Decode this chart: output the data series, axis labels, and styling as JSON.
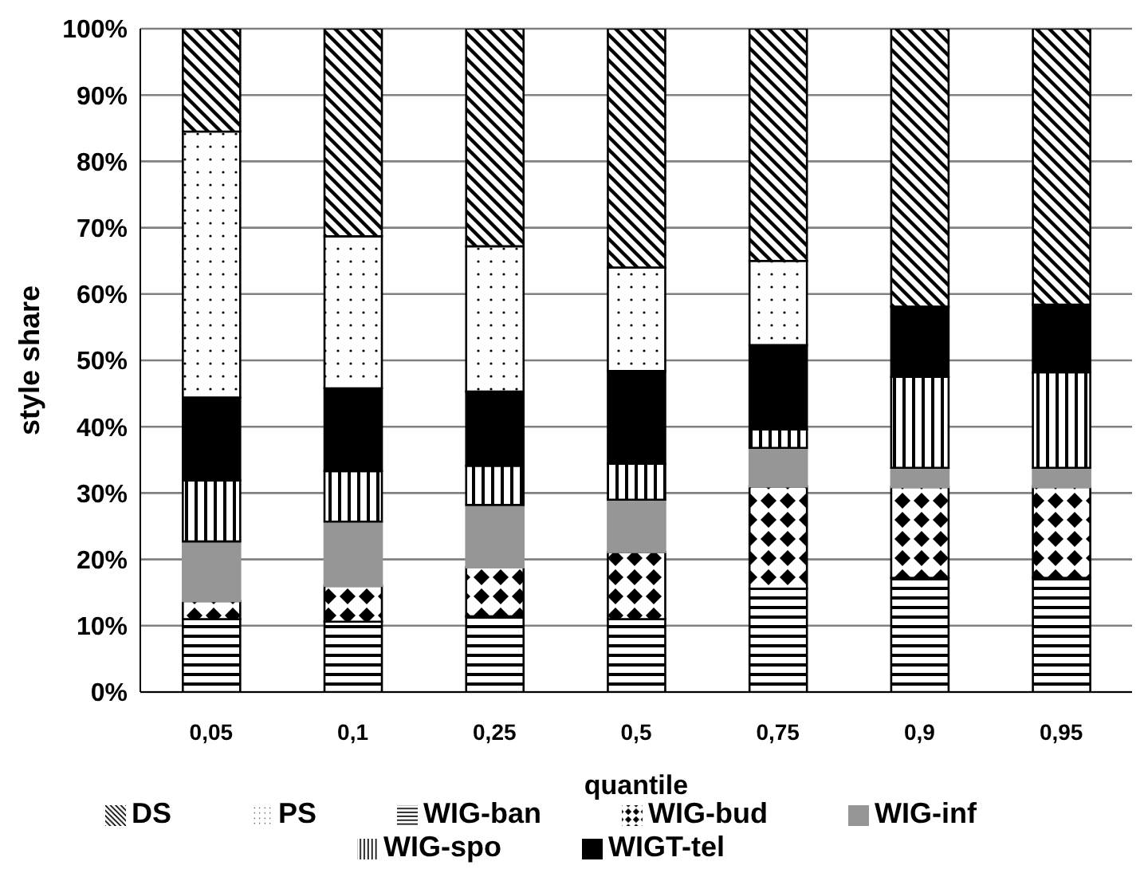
{
  "chart_data": {
    "type": "bar",
    "stacked": true,
    "xlabel": "quantile",
    "ylabel": "style share",
    "categories": [
      "0,05",
      "0,1",
      "0,25",
      "0,5",
      "0,75",
      "0,9",
      "0,95"
    ],
    "series": [
      {
        "name": "WIG-ban",
        "color": "#000000",
        "values": [
          11,
          10.6,
          11.4,
          11,
          15.6,
          17.2,
          17.2
        ]
      },
      {
        "name": "WIG-bud",
        "color": "#000000",
        "values": [
          2.7,
          5.4,
          7.4,
          10.1,
          15.4,
          13.7,
          13.7
        ]
      },
      {
        "name": "WIG-inf",
        "color": "#969696",
        "values": [
          9,
          9.7,
          9.4,
          7.9,
          5.8,
          2.9,
          2.9
        ]
      },
      {
        "name": "WIG-spo",
        "color": "#000000",
        "values": [
          9.2,
          7.6,
          5.9,
          5.4,
          2.8,
          13.7,
          14.4
        ]
      },
      {
        "name": "WIGT-tel",
        "color": "#000000",
        "values": [
          12.5,
          12.5,
          11.2,
          14,
          12.7,
          10.6,
          10.2
        ]
      },
      {
        "name": "PS",
        "color": "#000000",
        "values": [
          40.1,
          22.9,
          21.9,
          15.6,
          12.7,
          0,
          0
        ]
      },
      {
        "name": "DS",
        "color": "#000000",
        "values": [
          15.5,
          31.3,
          32.8,
          36,
          35,
          41.9,
          41.6
        ]
      }
    ],
    "ylim": [
      0,
      100
    ],
    "yticks": [
      {
        "value": 0,
        "label": "0%"
      },
      {
        "value": 10,
        "label": "10%"
      },
      {
        "value": 20,
        "label": "20%"
      },
      {
        "value": 30,
        "label": "30%"
      },
      {
        "value": 40,
        "label": "40%"
      },
      {
        "value": 50,
        "label": "50%"
      },
      {
        "value": 60,
        "label": "60%"
      },
      {
        "value": 70,
        "label": "70%"
      },
      {
        "value": 80,
        "label": "80%"
      },
      {
        "value": 90,
        "label": "90%"
      },
      {
        "value": 100,
        "label": "100%"
      }
    ],
    "grid": "y",
    "legend": "bottom"
  }
}
